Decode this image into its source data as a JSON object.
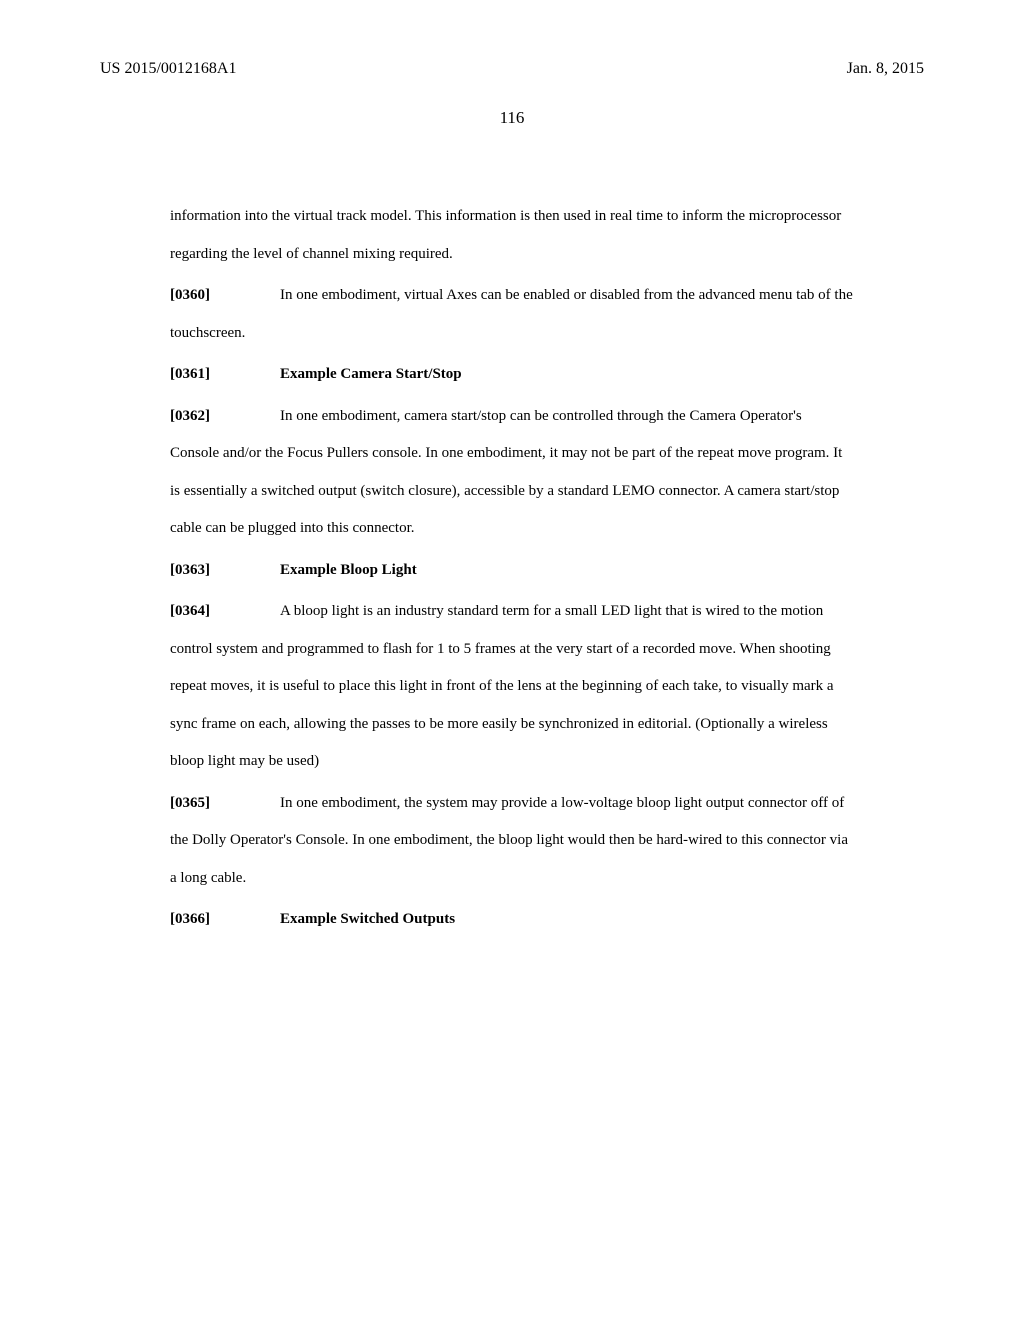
{
  "header": {
    "left": "US 2015/0012168A1",
    "right": "Jan. 8, 2015"
  },
  "page_number": "116",
  "paragraphs": {
    "p_cont": "information into the virtual track model.   This information is then used in real time to inform the microprocessor regarding the level of channel mixing required.",
    "p0360_num": "[0360]",
    "p0360_text": "In one embodiment, virtual Axes can be enabled or disabled from the advanced menu tab of the touchscreen.",
    "p0361_num": "[0361]",
    "p0361_heading": "Example Camera Start/Stop",
    "p0362_num": "[0362]",
    "p0362_text": "In one embodiment, camera start/stop can be controlled through the Camera Operator's Console and/or the Focus Pullers console.  In one embodiment, it may not be part of the repeat move program.  It is essentially a switched output (switch closure), accessible by a standard LEMO connector.  A camera start/stop cable can be plugged into this connector.",
    "p0363_num": "[0363]",
    "p0363_heading": "Example Bloop Light",
    "p0364_num": "[0364]",
    "p0364_text": "A bloop light is an industry standard term for a small LED light that is wired to the motion control system and programmed to flash for 1 to 5 frames at the very start of a recorded move.  When shooting repeat moves, it is useful to place this light in front of the lens at the beginning of each take, to visually mark a sync frame on each, allowing the passes to be more easily be synchronized in editorial.  (Optionally a wireless bloop light may be used)",
    "p0365_num": "[0365]",
    "p0365_text": "In one embodiment, the system may provide a low-voltage bloop light output connector off of the Dolly Operator's Console.  In one embodiment, the bloop light would then be hard-wired to this connector via a long cable.",
    "p0366_num": "[0366]",
    "p0366_heading": "Example Switched Outputs"
  }
}
